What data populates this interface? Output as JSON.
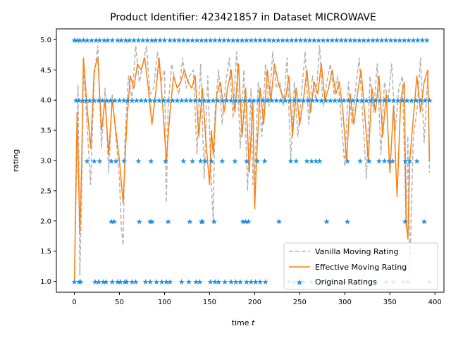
{
  "chart_data": {
    "type": "line",
    "title": "Product Identifier: 423421857 in Dataset MICROWAVE",
    "xlabel": "time",
    "xlabel_var": "t",
    "ylabel": "rating",
    "xlim": [
      -20,
      410
    ],
    "ylim": [
      0.82,
      5.18
    ],
    "xticks": [
      0,
      50,
      100,
      150,
      200,
      250,
      300,
      350,
      400
    ],
    "yticks": [
      1.0,
      1.5,
      2.0,
      2.5,
      3.0,
      3.5,
      4.0,
      4.5,
      5.0
    ],
    "legend_position": "lower-right",
    "colors": {
      "vanilla": "#b3b3b3",
      "effective": "#ff7f0e",
      "original": "#1f8ee0"
    },
    "series": [
      {
        "name": "Vanilla Moving Rating",
        "style": "dashed",
        "x": [
          0,
          4,
          6,
          8,
          10,
          14,
          18,
          22,
          26,
          30,
          34,
          38,
          42,
          46,
          50,
          52,
          54,
          56,
          60,
          64,
          68,
          72,
          76,
          80,
          84,
          88,
          92,
          96,
          100,
          102,
          104,
          108,
          112,
          116,
          120,
          124,
          128,
          132,
          136,
          140,
          144,
          148,
          152,
          154,
          156,
          160,
          164,
          168,
          172,
          176,
          180,
          184,
          188,
          192,
          196,
          198,
          200,
          204,
          208,
          212,
          216,
          220,
          224,
          228,
          232,
          236,
          240,
          244,
          248,
          252,
          256,
          260,
          264,
          268,
          272,
          276,
          280,
          284,
          288,
          292,
          296,
          300,
          304,
          308,
          312,
          316,
          320,
          324,
          328,
          332,
          336,
          340,
          344,
          348,
          352,
          356,
          360,
          364,
          368,
          370,
          372,
          376,
          380,
          384,
          388,
          392,
          394
        ],
        "y": [
          1.0,
          4.25,
          1.1,
          2.4,
          4.6,
          3.6,
          2.6,
          4.4,
          4.9,
          3.2,
          4.2,
          2.8,
          4.1,
          3.4,
          2.7,
          1.9,
          1.6,
          3.3,
          4.4,
          4.0,
          4.9,
          4.3,
          4.6,
          4.9,
          4.1,
          4.2,
          4.8,
          4.3,
          4.5,
          2.3,
          3.9,
          4.6,
          4.3,
          4.1,
          4.7,
          4.2,
          4.4,
          4.5,
          3.1,
          4.6,
          2.7,
          4.4,
          2.6,
          2.0,
          3.8,
          4.5,
          3.6,
          4.3,
          4.7,
          3.7,
          4.8,
          3.2,
          4.5,
          2.5,
          4.2,
          2.6,
          2.7,
          4.3,
          3.4,
          4.6,
          3.9,
          4.8,
          4.2,
          4.3,
          3.9,
          4.7,
          3.0,
          4.3,
          3.4,
          4.1,
          4.8,
          3.6,
          4.4,
          4.0,
          4.9,
          3.9,
          4.3,
          4.6,
          4.1,
          4.4,
          3.7,
          2.9,
          4.3,
          3.6,
          4.2,
          4.7,
          3.7,
          2.7,
          4.4,
          3.8,
          4.6,
          3.1,
          4.3,
          4.0,
          4.6,
          3.5,
          4.2,
          4.4,
          1.9,
          3.4,
          1.1,
          3.4,
          3.8,
          4.7,
          3.3,
          4.4,
          2.8
        ]
      },
      {
        "name": "Effective Moving Rating",
        "style": "solid",
        "x": [
          0,
          3,
          6,
          8,
          10,
          14,
          18,
          22,
          26,
          30,
          34,
          38,
          42,
          46,
          50,
          54,
          58,
          62,
          66,
          70,
          74,
          78,
          82,
          86,
          90,
          94,
          98,
          102,
          106,
          110,
          114,
          118,
          122,
          126,
          130,
          134,
          138,
          142,
          146,
          150,
          152,
          154,
          158,
          162,
          166,
          170,
          174,
          178,
          182,
          186,
          190,
          194,
          198,
          200,
          202,
          206,
          210,
          214,
          218,
          222,
          226,
          230,
          234,
          238,
          242,
          246,
          250,
          254,
          258,
          262,
          266,
          270,
          274,
          278,
          282,
          286,
          290,
          294,
          298,
          302,
          306,
          310,
          314,
          318,
          322,
          326,
          330,
          334,
          338,
          342,
          346,
          350,
          354,
          358,
          362,
          366,
          368,
          370,
          372,
          376,
          380,
          384,
          388,
          392,
          394
        ],
        "y": [
          1.0,
          3.8,
          1.8,
          2.9,
          4.7,
          3.9,
          3.2,
          4.5,
          4.7,
          3.5,
          4.0,
          3.1,
          4.0,
          3.5,
          3.0,
          2.3,
          3.6,
          4.4,
          4.2,
          4.6,
          4.5,
          4.7,
          4.2,
          3.6,
          4.1,
          4.7,
          3.9,
          3.0,
          3.8,
          4.4,
          4.2,
          4.3,
          4.5,
          4.3,
          4.2,
          4.4,
          3.4,
          4.2,
          3.3,
          2.6,
          3.5,
          3.1,
          4.1,
          4.3,
          3.8,
          4.2,
          4.5,
          3.8,
          4.6,
          3.4,
          4.2,
          2.8,
          4.0,
          2.2,
          3.0,
          4.2,
          3.6,
          4.5,
          4.0,
          4.6,
          4.3,
          4.1,
          4.0,
          4.4,
          3.4,
          4.2,
          3.6,
          4.0,
          4.5,
          3.8,
          4.3,
          4.1,
          4.6,
          4.0,
          4.2,
          4.5,
          4.1,
          4.3,
          3.8,
          3.0,
          4.1,
          3.6,
          4.1,
          4.5,
          3.8,
          3.0,
          4.2,
          3.8,
          4.4,
          3.4,
          4.1,
          2.8,
          3.9,
          2.4,
          4.0,
          4.3,
          2.0,
          1.7,
          3.0,
          3.7,
          4.4,
          3.8,
          4.3,
          4.5,
          3.0
        ]
      },
      {
        "name": "Original Ratings",
        "style": "markers",
        "x": [
          0,
          3,
          6,
          10,
          14,
          19,
          24,
          28,
          33,
          37,
          42,
          48,
          52,
          57,
          61,
          66,
          71,
          76,
          81,
          86,
          90,
          95,
          100,
          106,
          111,
          116,
          121,
          126,
          131,
          136,
          141,
          146,
          151,
          156,
          161,
          166,
          171,
          176,
          181,
          186,
          191,
          196,
          201,
          206,
          211,
          216,
          221,
          226,
          231,
          236,
          241,
          246,
          251,
          256,
          261,
          266,
          271,
          276,
          281,
          286,
          291,
          296,
          301,
          306,
          311,
          316,
          321,
          326,
          331,
          336,
          341,
          346,
          351,
          356,
          361,
          366,
          371,
          376,
          381,
          386,
          391,
          2,
          5,
          9,
          13,
          17,
          22,
          27,
          31,
          36,
          40,
          45,
          50,
          55,
          59,
          64,
          69,
          74,
          79,
          84,
          89,
          94,
          99,
          104,
          109,
          114,
          119,
          124,
          129,
          134,
          139,
          144,
          149,
          154,
          159,
          164,
          169,
          174,
          179,
          184,
          189,
          194,
          199,
          204,
          209,
          214,
          219,
          224,
          229,
          234,
          239,
          244,
          249,
          254,
          259,
          264,
          269,
          274,
          279,
          284,
          289,
          294,
          299,
          304,
          309,
          314,
          319,
          324,
          329,
          334,
          339,
          344,
          349,
          354,
          359,
          364,
          369,
          374,
          379,
          384,
          389,
          394,
          14,
          22,
          28,
          41,
          46,
          55,
          71,
          85,
          101,
          121,
          131,
          140,
          145,
          152,
          164,
          178,
          191,
          203,
          211,
          240,
          246,
          258,
          263,
          268,
          272,
          303,
          317,
          327,
          338,
          344,
          349,
          353,
          367,
          372,
          380,
          41,
          44,
          72,
          84,
          86,
          104,
          128,
          141,
          142,
          155,
          187,
          190,
          193,
          227,
          280,
          303,
          367,
          388,
          0,
          5,
          7,
          23,
          27,
          32,
          35,
          42,
          48,
          51,
          56,
          58,
          64,
          68,
          79,
          84,
          91,
          97,
          102,
          106,
          119,
          127,
          135,
          139,
          151,
          156,
          160,
          167,
          174,
          179,
          184,
          191,
          196,
          201,
          206,
          212,
          238,
          244,
          254,
          263,
          278,
          285,
          300,
          313,
          325,
          335,
          346,
          354,
          365,
          370,
          394
        ],
        "y": [
          5,
          5,
          5,
          5,
          5,
          5,
          5,
          5,
          5,
          5,
          5,
          5,
          5,
          5,
          5,
          5,
          5,
          5,
          5,
          5,
          5,
          5,
          5,
          5,
          5,
          5,
          5,
          5,
          5,
          5,
          5,
          5,
          5,
          5,
          5,
          5,
          5,
          5,
          5,
          5,
          5,
          5,
          5,
          5,
          5,
          5,
          5,
          5,
          5,
          5,
          5,
          5,
          5,
          5,
          5,
          5,
          5,
          5,
          5,
          5,
          5,
          5,
          5,
          5,
          5,
          5,
          5,
          5,
          5,
          5,
          5,
          5,
          5,
          5,
          5,
          5,
          5,
          5,
          5,
          5,
          5,
          4,
          4,
          4,
          4,
          4,
          4,
          4,
          4,
          4,
          4,
          4,
          4,
          4,
          4,
          4,
          4,
          4,
          4,
          4,
          4,
          4,
          4,
          4,
          4,
          4,
          4,
          4,
          4,
          4,
          4,
          4,
          4,
          4,
          4,
          4,
          4,
          4,
          4,
          4,
          4,
          4,
          4,
          4,
          4,
          4,
          4,
          4,
          4,
          4,
          4,
          4,
          4,
          4,
          4,
          4,
          4,
          4,
          4,
          4,
          4,
          4,
          4,
          4,
          4,
          4,
          4,
          4,
          4,
          4,
          4,
          4,
          4,
          4,
          4,
          4,
          4,
          4,
          4,
          4,
          4,
          4,
          3,
          3,
          3,
          3,
          3,
          3,
          3,
          3,
          3,
          3,
          3,
          3,
          3,
          3,
          3,
          3,
          3,
          3,
          3,
          3,
          3,
          3,
          3,
          3,
          3,
          3,
          3,
          3,
          3,
          3,
          3,
          3,
          3,
          3,
          3,
          2,
          2,
          2,
          2,
          2,
          2,
          2,
          2,
          2,
          2,
          2,
          2,
          2,
          2,
          2,
          2,
          2,
          2,
          1,
          1,
          1,
          1,
          1,
          1,
          1,
          1,
          1,
          1,
          1,
          1,
          1,
          1,
          1,
          1,
          1,
          1,
          1,
          1,
          1,
          1,
          1,
          1,
          1,
          1,
          1,
          1,
          1,
          1,
          1,
          1,
          1,
          1,
          1,
          1,
          1,
          1,
          1,
          1,
          1,
          1,
          1,
          1,
          1,
          1,
          1,
          1,
          1,
          1,
          1
        ]
      }
    ]
  }
}
